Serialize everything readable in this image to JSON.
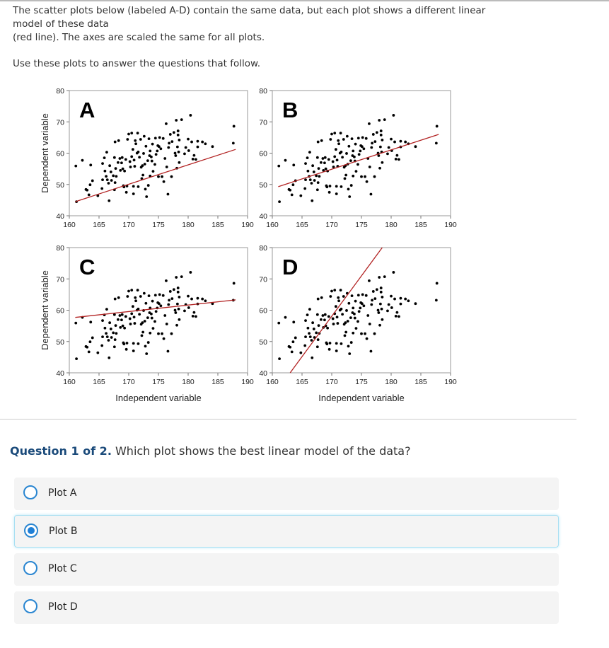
{
  "intro": {
    "lines": [
      "The scatter plots below (labeled A-D) contain the same data, but each plot shows a different linear",
      "model of these data",
      "(red line). The axes are scaled the same for all plots."
    ],
    "use_text": "Use these plots to answer the questions that follow."
  },
  "question": {
    "prefix": "Question 1 of 2.",
    "text": " Which plot shows the best linear model of the data?",
    "options": [
      {
        "label": "Plot A",
        "selected": false
      },
      {
        "label": "Plot B",
        "selected": true
      },
      {
        "label": "Plot C",
        "selected": false
      },
      {
        "label": "Plot D",
        "selected": false
      }
    ]
  },
  "colors": {
    "accent": "#2a86d1",
    "model_line": "#b22222",
    "points": "#000000"
  },
  "chart_data": {
    "type": "scatter",
    "xlabel": "Independent variable",
    "ylabel": "Dependent variable",
    "xlim": [
      160,
      190
    ],
    "ylim": [
      40,
      80
    ],
    "xticks": [
      "160",
      "165",
      "170",
      "175",
      "180",
      "185",
      "190"
    ],
    "yticks": [
      "40",
      "50",
      "60",
      "70",
      "80"
    ],
    "grid": false,
    "points": [
      [
        161.1,
        55.9
      ],
      [
        161.2,
        44.5
      ],
      [
        162.2,
        57.7
      ],
      [
        162.8,
        48.4
      ],
      [
        163.0,
        48.2
      ],
      [
        163.3,
        46.7
      ],
      [
        163.5,
        49.9
      ],
      [
        163.6,
        56.2
      ],
      [
        163.9,
        51.2
      ],
      [
        164.8,
        46.4
      ],
      [
        165.5,
        48.7
      ],
      [
        165.6,
        51.5
      ],
      [
        165.6,
        56.7
      ],
      [
        165.9,
        58.5
      ],
      [
        166.0,
        54.3
      ],
      [
        166.2,
        52.6
      ],
      [
        166.3,
        60.3
      ],
      [
        166.4,
        51.5
      ],
      [
        166.6,
        50.4
      ],
      [
        166.7,
        44.8
      ],
      [
        166.8,
        56.0
      ],
      [
        167.0,
        54.0
      ],
      [
        167.1,
        51.3
      ],
      [
        167.4,
        52.8
      ],
      [
        167.6,
        58.6
      ],
      [
        167.7,
        50.6
      ],
      [
        167.6,
        48.3
      ],
      [
        167.8,
        55.1
      ],
      [
        167.9,
        52.6
      ],
      [
        168.3,
        64.0
      ],
      [
        167.7,
        63.6
      ],
      [
        168.5,
        58.3
      ],
      [
        168.6,
        54.5
      ],
      [
        168.8,
        56.9
      ],
      [
        168.9,
        58.6
      ],
      [
        169.1,
        49.6
      ],
      [
        169.2,
        49.2
      ],
      [
        169.3,
        54.3
      ],
      [
        169.7,
        49.5
      ],
      [
        169.6,
        47.5
      ],
      [
        169.8,
        64.4
      ],
      [
        170.0,
        66.1
      ],
      [
        170.3,
        55.6
      ],
      [
        170.5,
        66.4
      ],
      [
        170.5,
        58.9
      ],
      [
        170.7,
        61.2
      ],
      [
        170.8,
        49.4
      ],
      [
        170.8,
        47.0
      ],
      [
        171.0,
        55.8
      ],
      [
        171.1,
        64.0
      ],
      [
        171.2,
        63.0
      ],
      [
        171.5,
        66.4
      ],
      [
        171.6,
        60.4
      ],
      [
        171.6,
        49.3
      ],
      [
        172.0,
        64.4
      ],
      [
        172.1,
        55.5
      ],
      [
        172.2,
        51.9
      ],
      [
        172.4,
        53.0
      ],
      [
        172.5,
        59.9
      ],
      [
        172.6,
        65.4
      ],
      [
        172.7,
        56.5
      ],
      [
        172.8,
        48.5
      ],
      [
        172.9,
        62.2
      ],
      [
        173.0,
        46.1
      ],
      [
        173.2,
        57.6
      ],
      [
        173.3,
        49.7
      ],
      [
        173.4,
        64.6
      ],
      [
        173.6,
        60.7
      ],
      [
        173.6,
        52.7
      ],
      [
        173.8,
        58.8
      ],
      [
        174.0,
        62.9
      ],
      [
        174.1,
        54.2
      ],
      [
        174.4,
        56.4
      ],
      [
        174.5,
        64.8
      ],
      [
        174.6,
        59.6
      ],
      [
        174.8,
        60.7
      ],
      [
        175.0,
        52.5
      ],
      [
        175.1,
        62.1
      ],
      [
        175.2,
        65.0
      ],
      [
        175.4,
        61.4
      ],
      [
        175.6,
        52.5
      ],
      [
        175.8,
        64.7
      ],
      [
        175.9,
        50.9
      ],
      [
        176.1,
        58.3
      ],
      [
        176.3,
        69.4
      ],
      [
        176.4,
        55.6
      ],
      [
        176.6,
        46.9
      ],
      [
        176.7,
        61.8
      ],
      [
        177.0,
        66.0
      ],
      [
        177.2,
        52.5
      ],
      [
        177.3,
        63.7
      ],
      [
        177.6,
        66.6
      ],
      [
        177.9,
        59.2
      ],
      [
        178.0,
        70.5
      ],
      [
        178.1,
        55.2
      ],
      [
        178.2,
        62.0
      ],
      [
        178.3,
        67.1
      ],
      [
        178.3,
        65.8
      ],
      [
        178.4,
        60.4
      ],
      [
        178.5,
        57.0
      ],
      [
        178.5,
        64.2
      ],
      [
        178.9,
        70.7
      ],
      [
        179.4,
        59.8
      ],
      [
        179.6,
        61.8
      ],
      [
        180.0,
        64.5
      ],
      [
        180.1,
        60.8
      ],
      [
        180.4,
        72.1
      ],
      [
        180.6,
        63.6
      ],
      [
        180.8,
        58.1
      ],
      [
        181.0,
        59.3
      ],
      [
        181.3,
        58.0
      ],
      [
        181.6,
        63.8
      ],
      [
        181.6,
        62.0
      ],
      [
        182.4,
        63.6
      ],
      [
        182.9,
        63.0
      ],
      [
        184.1,
        62.1
      ],
      [
        187.6,
        63.2
      ],
      [
        187.7,
        68.6
      ],
      [
        169.5,
        58.0
      ],
      [
        170.2,
        57.3
      ],
      [
        171.8,
        58.7
      ],
      [
        173.9,
        57.5
      ],
      [
        174.9,
        62.4
      ],
      [
        172.3,
        56.0
      ],
      [
        169.0,
        55.0
      ],
      [
        170.9,
        57.8
      ],
      [
        173.5,
        59.2
      ],
      [
        176.8,
        63.2
      ],
      [
        177.8,
        60.0
      ],
      [
        168.2,
        57.0
      ],
      [
        171.4,
        60.0
      ]
    ],
    "panels": [
      {
        "label": "A",
        "line": [
          [
            161,
            44.5
          ],
          [
            188,
            61.2
          ]
        ]
      },
      {
        "label": "B",
        "line": [
          [
            161,
            49.3
          ],
          [
            188,
            66.0
          ]
        ]
      },
      {
        "label": "C",
        "line": [
          [
            161,
            57.7
          ],
          [
            188,
            63.3
          ]
        ]
      },
      {
        "label": "D",
        "line": [
          [
            163,
            40
          ],
          [
            178.5,
            80
          ]
        ]
      }
    ]
  }
}
